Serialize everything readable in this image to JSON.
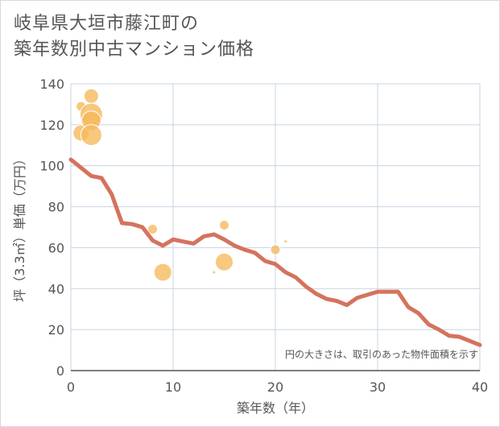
{
  "chart_data": {
    "type": "scatter",
    "title_lines": [
      "岐阜県大垣市藤江町の",
      "築年数別中古マンション価格"
    ],
    "xlabel": "築年数（年）",
    "ylabel": "坪（3.3㎡）単価（万円）",
    "xlim": [
      0,
      40
    ],
    "ylim": [
      0,
      140
    ],
    "x_ticks": [
      "0",
      "10",
      "20",
      "30",
      "40"
    ],
    "y_ticks": [
      "0",
      "20",
      "40",
      "60",
      "80",
      "100",
      "120",
      "140"
    ],
    "grid": true,
    "note": "円の大きさは、取引のあった物件面積を示す",
    "colors": {
      "line": "#d4735e",
      "bubble": "#f5b95a",
      "grid": "#c9d3e0",
      "axis": "#555555"
    },
    "bubbles": [
      {
        "x": 1,
        "y": 116,
        "r": 10
      },
      {
        "x": 1,
        "y": 129,
        "r": 6
      },
      {
        "x": 2,
        "y": 134,
        "r": 9
      },
      {
        "x": 2,
        "y": 125,
        "r": 14
      },
      {
        "x": 2,
        "y": 122,
        "r": 12
      },
      {
        "x": 2,
        "y": 115,
        "r": 13
      },
      {
        "x": 8,
        "y": 69,
        "r": 6
      },
      {
        "x": 9,
        "y": 48,
        "r": 11
      },
      {
        "x": 14,
        "y": 48,
        "r": 2
      },
      {
        "x": 15,
        "y": 71,
        "r": 6
      },
      {
        "x": 15,
        "y": 53,
        "r": 11
      },
      {
        "x": 20,
        "y": 59,
        "r": 6
      },
      {
        "x": 21,
        "y": 63,
        "r": 2
      }
    ],
    "trend": {
      "x": [
        0,
        1,
        2,
        3,
        4,
        5,
        6,
        7,
        8,
        9,
        10,
        11,
        12,
        13,
        14,
        15,
        16,
        17,
        18,
        19,
        20,
        21,
        22,
        23,
        24,
        25,
        26,
        27,
        28,
        29,
        30,
        31,
        32,
        33,
        34,
        35,
        36,
        37,
        38,
        39,
        40
      ],
      "y": [
        103,
        99,
        95,
        94,
        86,
        72,
        71.5,
        70,
        63.5,
        61,
        64,
        63,
        62,
        65.5,
        66.5,
        64,
        61,
        59,
        57.5,
        53.5,
        52,
        48,
        45.5,
        41,
        37.5,
        35,
        34,
        32,
        35.5,
        37,
        38.5,
        38.5,
        38.5,
        31,
        28,
        22.5,
        20,
        17,
        16.5,
        14.5,
        12.5
      ]
    }
  }
}
